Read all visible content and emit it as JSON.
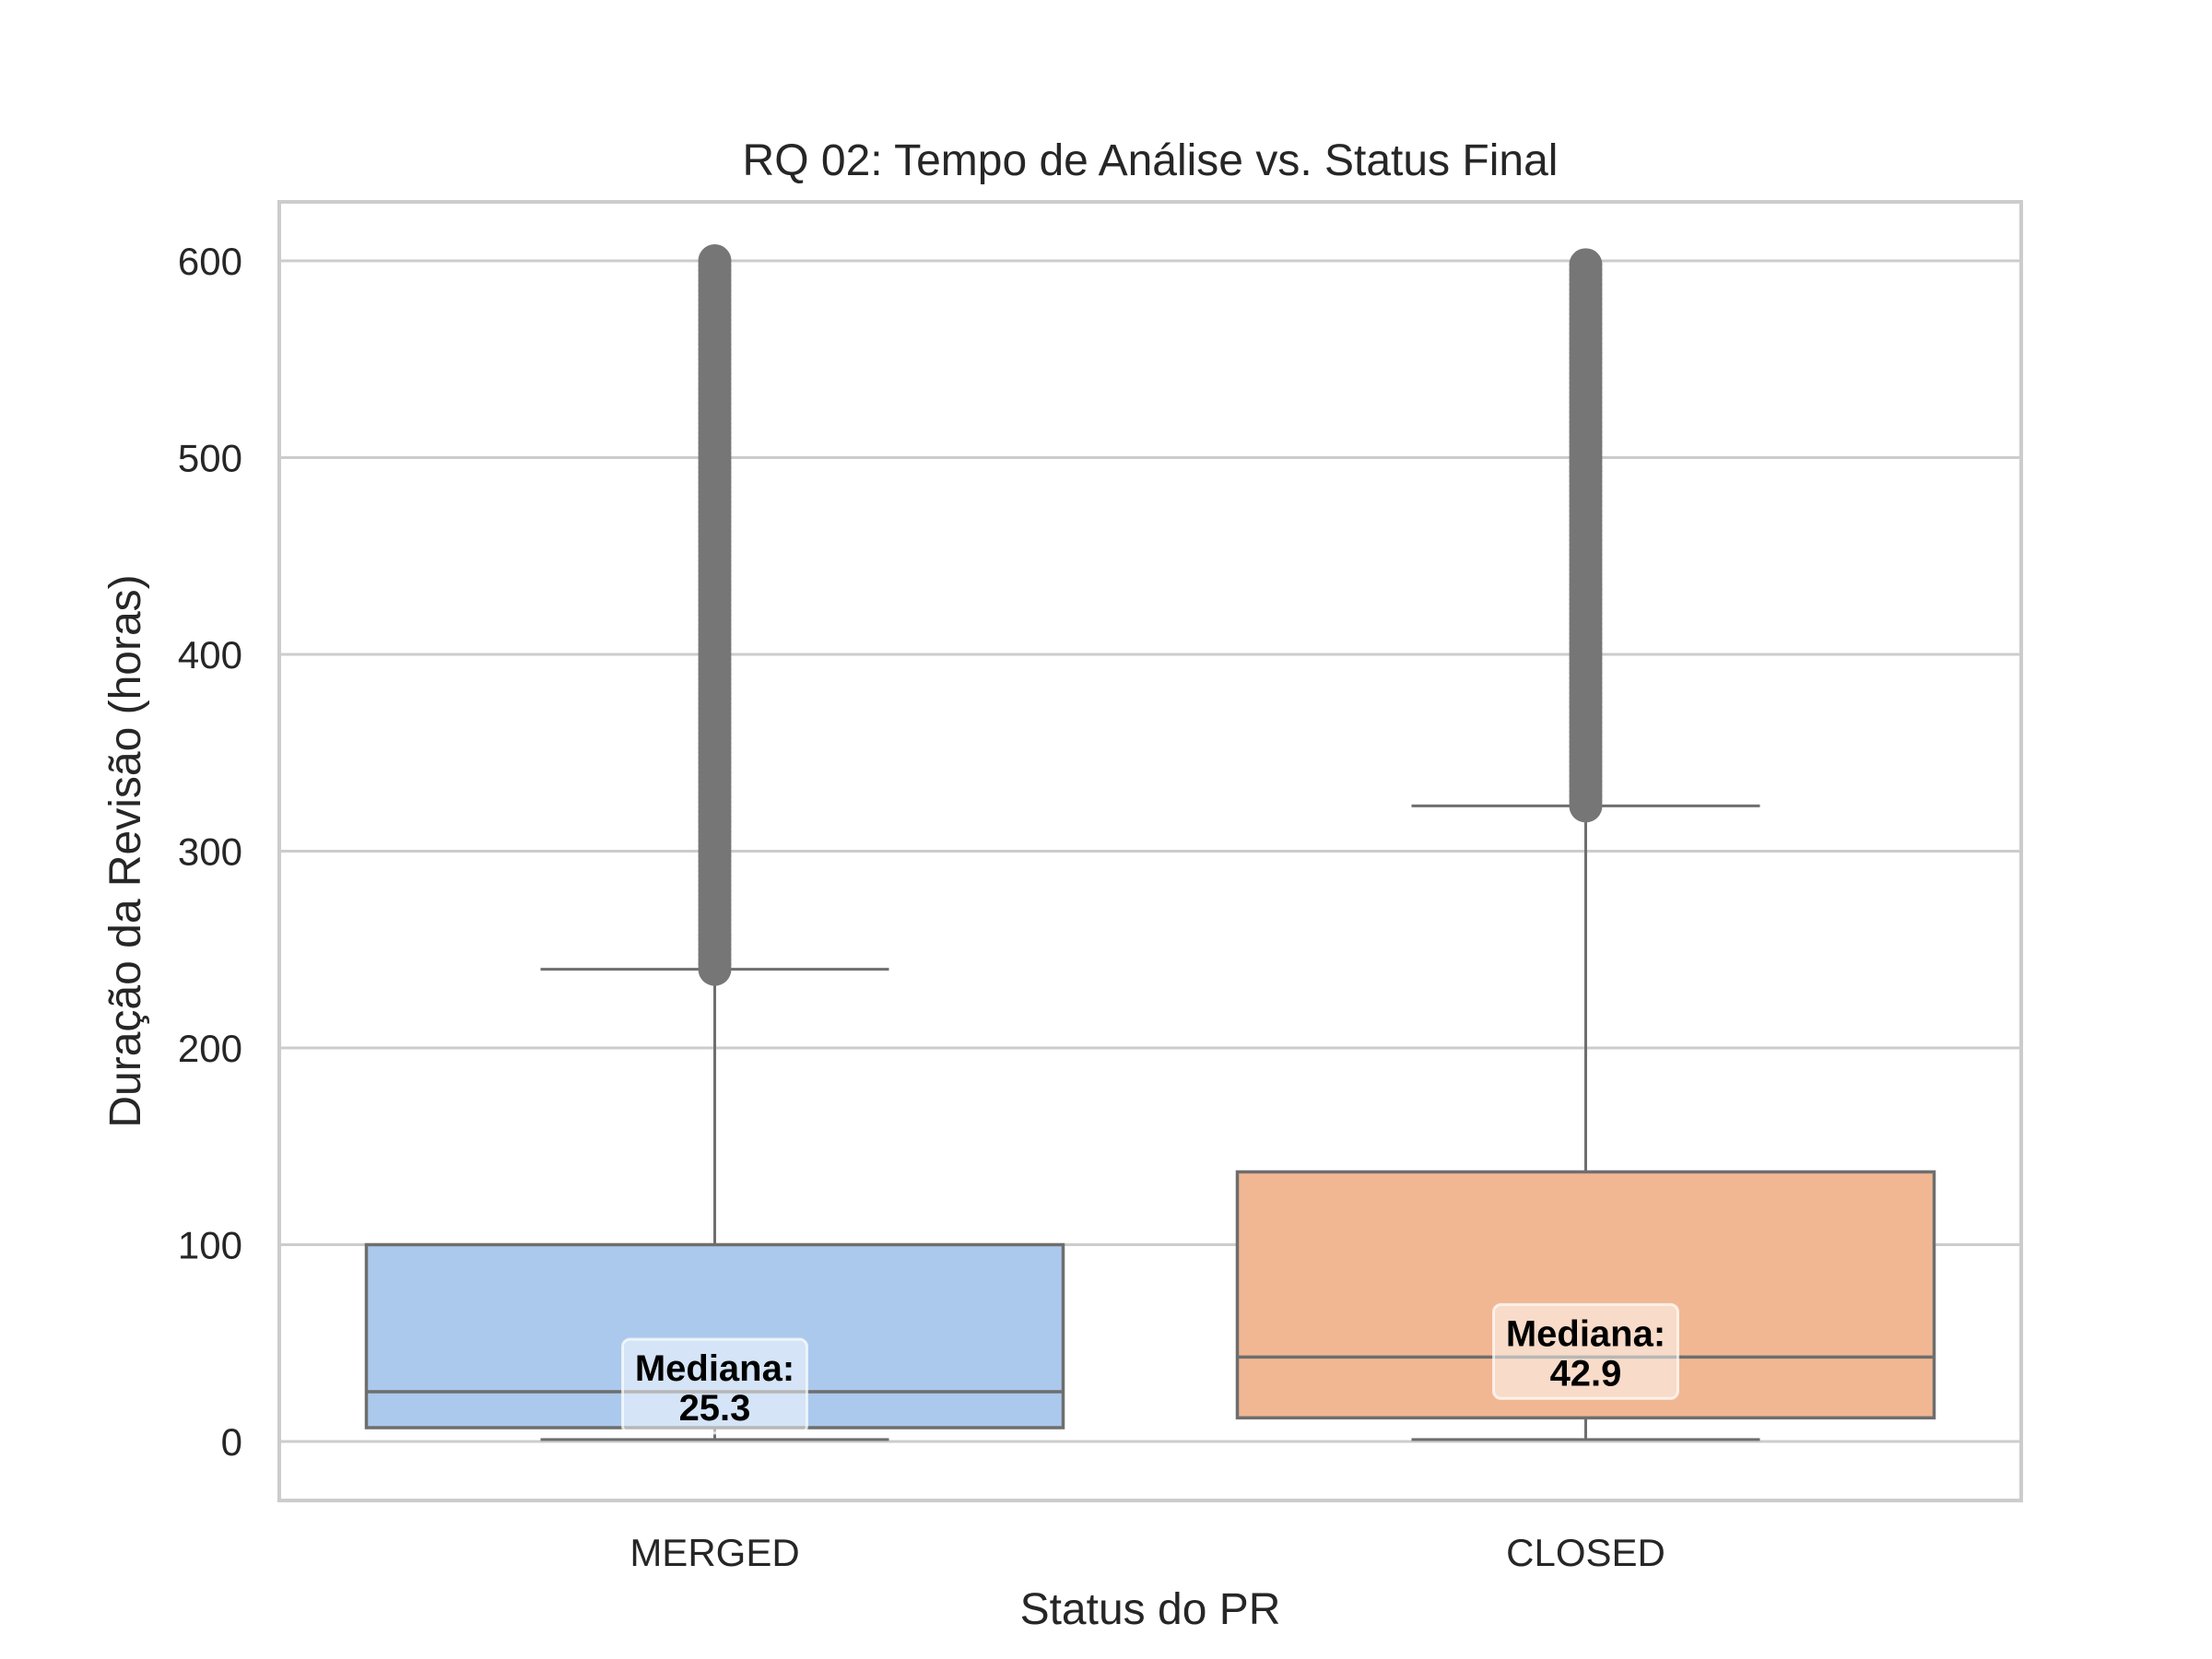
{
  "chart_data": {
    "type": "box",
    "title": "RQ 02: Tempo de Análise vs. Status Final",
    "xlabel": "Status do PR",
    "ylabel": "Duração da Revisão (horas)",
    "ylim": [
      -30,
      630
    ],
    "yticks": [
      0,
      100,
      200,
      300,
      400,
      500,
      600
    ],
    "grid": true,
    "categories": [
      "MERGED",
      "CLOSED"
    ],
    "boxes": [
      {
        "category": "MERGED",
        "color": "#abc9ec",
        "whisker_low": 1,
        "q1": 7,
        "median": 25.3,
        "q3": 100,
        "whisker_high": 240,
        "outliers_range": [
          240,
          600
        ],
        "annotation": [
          "Mediana:",
          "25.3"
        ]
      },
      {
        "category": "CLOSED",
        "color": "#f1b793",
        "whisker_low": 1,
        "q1": 12,
        "median": 42.9,
        "q3": 137,
        "whisker_high": 323,
        "outliers_range": [
          323,
          600
        ],
        "annotation": [
          "Mediana:",
          "42.9"
        ]
      }
    ],
    "colors": {
      "line": "#6e6e6e",
      "outlier": "#767676",
      "grid": "#cccccc",
      "frame": "#cccccc"
    }
  }
}
